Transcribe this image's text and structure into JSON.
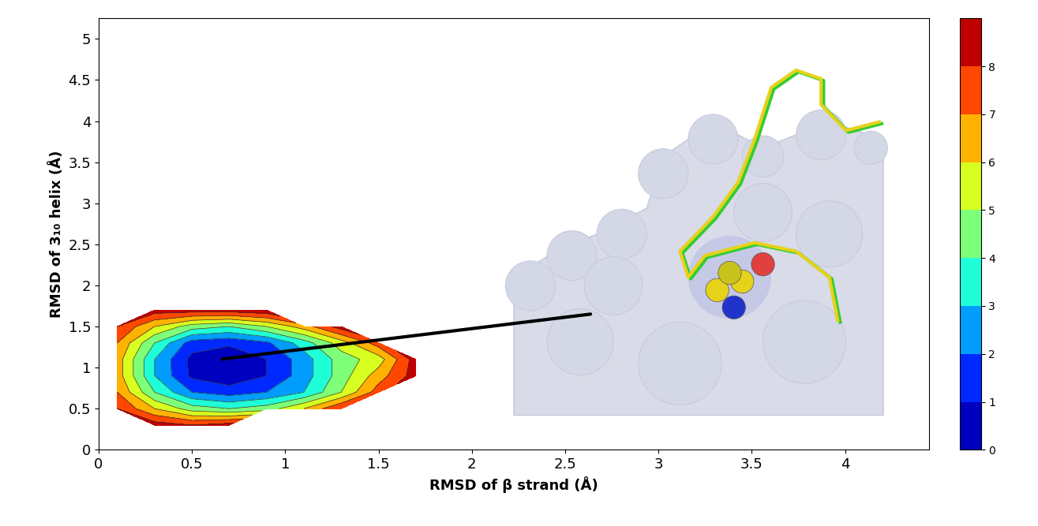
{
  "chart_data": {
    "type": "contour",
    "x_label": "RMSD of β strand (Å)",
    "y_label": "RMSD of 3₁₀ helix (Å)",
    "x": [
      0.1,
      0.3,
      0.5,
      0.7,
      0.9,
      1.1,
      1.3,
      1.5,
      1.7
    ],
    "y": [
      0.3,
      0.5,
      0.7,
      0.9,
      1.1,
      1.3,
      1.5,
      1.7
    ],
    "cells": [
      [
        null,
        8.5,
        8,
        8.5,
        null,
        null,
        null,
        null,
        null
      ],
      [
        8,
        6,
        4.5,
        4,
        4.5,
        6,
        8,
        null,
        null
      ],
      [
        7,
        4,
        2,
        1.5,
        2,
        3,
        5,
        7.5,
        null
      ],
      [
        6.5,
        3,
        0.8,
        0.3,
        1,
        2.5,
        4.5,
        6.5,
        8.5
      ],
      [
        6.5,
        3,
        0.7,
        0.2,
        1,
        2.5,
        4.5,
        5.5,
        8.5
      ],
      [
        7,
        4,
        1.5,
        1.2,
        1.8,
        3.5,
        5.5,
        7.5,
        null
      ],
      [
        8,
        6,
        4.5,
        4,
        5,
        6.5,
        8.5,
        null,
        null
      ],
      [
        null,
        8.5,
        8.5,
        8.5,
        8.8,
        null,
        null,
        null,
        null
      ]
    ],
    "levels": [
      0,
      1,
      2,
      3,
      4,
      5,
      6,
      7,
      8,
      9
    ],
    "colorbar_lim": [
      0,
      9
    ],
    "colorbar_ticks": [
      0,
      1,
      2,
      3,
      4,
      5,
      6,
      7,
      8
    ],
    "minimum": [
      0.65,
      1.1
    ],
    "xlim": [
      0,
      4.45
    ],
    "xticks": [
      0,
      0.5,
      1,
      1.5,
      2,
      2.5,
      3,
      3.5,
      4
    ],
    "ylim": [
      0,
      5.25
    ],
    "yticks": [
      0,
      0.5,
      1,
      1.5,
      2,
      2.5,
      3,
      3.5,
      4,
      4.5,
      5
    ],
    "grid": false
  }
}
